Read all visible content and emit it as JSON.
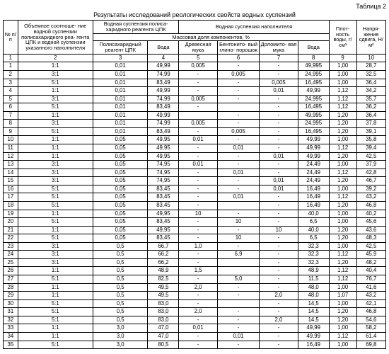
{
  "labels": {
    "table_no": "Таблица 2",
    "title": "Результаты исследований реологических свойств водных суспензий",
    "h_num": "№ п/п",
    "h_ratio": "Объемное соотноше- ние водной суспензии полисахаридного реа- гента ЦПК и водной суспензии указанного наполнителя",
    "h_cpk_susp": "Водная суспензия полиса- харидного реагента ЦПК",
    "h_filler_susp": "Водная суспензия наполнителя",
    "h_density": "Плот- ность воды, г/см³",
    "h_stress": "Напря- жение сдвига, Н/м²",
    "h_massfrac": "Массовая доля компонентов, %",
    "h_poly": "Полисахаридный реагент ЦПК",
    "h_water1": "Вода",
    "h_wood": "Древесная мука",
    "h_bent": "Бентонито- вый глино- порошок",
    "h_dolo": "Доломито- вая мука",
    "h_water2": "Вода"
  },
  "colnums": [
    "1",
    "2",
    "3",
    "4",
    "5",
    "6",
    "7",
    "8",
    "9",
    "10"
  ],
  "rows": [
    [
      "1",
      "1:1",
      "0,01",
      "49,99",
      "0,005",
      "-",
      "-",
      "49,995",
      "1,00",
      "28,7"
    ],
    [
      "2",
      "3:1",
      "0,01",
      "74,99",
      "-",
      "0,005",
      "-",
      "24,995",
      "1,00",
      "32,5"
    ],
    [
      "3",
      "5:1",
      "0,01",
      "83,49",
      "-",
      "-",
      "0,005",
      "16,495",
      "1,00",
      "36,4"
    ],
    [
      "4",
      "1:1",
      "0,01",
      "49,99",
      "-",
      "-",
      "0,01",
      "49,99",
      "1,12",
      "34,2"
    ],
    [
      "5",
      "3:1",
      "0,01",
      "74,99",
      "0,005",
      "-",
      "-",
      "24,995",
      "1,12",
      "35,7"
    ],
    [
      "6",
      "5:1",
      "0,01",
      "83,49",
      "-",
      "",
      "-",
      "16,495",
      "1,12",
      "36,2"
    ],
    [
      "7",
      "1:1",
      "0,01",
      "49,99",
      "",
      "-",
      "-",
      "49,995",
      "1,20",
      "36,4"
    ],
    [
      "8",
      "3:1",
      "0,01",
      "74,99",
      "0,005",
      "-",
      "-",
      "24,995",
      "1,20",
      "37,8"
    ],
    [
      "9",
      "5:1",
      "0,01",
      "83,49",
      "-",
      "0,005",
      "-",
      "16,495",
      "1,20",
      "39,1"
    ],
    [
      "10",
      "1:1",
      "0,05",
      "49,95",
      "0,01",
      "-",
      "-",
      "49,99",
      "1,00",
      "35,8"
    ],
    [
      "11",
      "1:1",
      "0,05",
      "49,95",
      "-",
      "0,01",
      "-",
      "49,99",
      "1,12",
      "39,4"
    ],
    [
      "12",
      "1:1",
      "0,05",
      "49,95",
      "-",
      "-",
      "0,01",
      "49,99",
      "1,20",
      "42,5"
    ],
    [
      "13",
      "3:1",
      "0,05",
      "74,95",
      "0,01",
      "-",
      "-",
      "24,49",
      "1,00",
      "37,9"
    ],
    [
      "14",
      "3:1",
      "0,05",
      "74,95",
      "-",
      "0,01",
      "-",
      "24,49",
      "1,12",
      "42,8"
    ],
    [
      "15",
      "3:1",
      "0,05",
      "74,95",
      "-",
      "-",
      "0,01",
      "24,49",
      "1,20",
      "46,7"
    ],
    [
      "16",
      "5:1",
      "0,05",
      "83,45",
      "-",
      "-",
      "0,01",
      "16,49",
      "1,00",
      "39,2"
    ],
    [
      "17",
      "5:1",
      "0,05",
      "83,45",
      "-",
      "0,01",
      "-",
      "16,49",
      "1,12",
      "43,2"
    ],
    [
      "18",
      "5:1",
      "0,05",
      "83,45",
      "-",
      "",
      "-",
      "16,49",
      "1,20",
      "46,8"
    ],
    [
      "19",
      "1:1",
      "0,05",
      "49,95",
      "10",
      "-",
      "-",
      "40,0",
      "1,00",
      "40,2"
    ],
    [
      "20",
      "5:1",
      "0,05",
      "83,45",
      "-",
      "10",
      "-",
      "6,5",
      "1,00",
      "45,6"
    ],
    [
      "21",
      "1:1",
      "0,05",
      "49,95",
      "-",
      "-",
      "10",
      "40,0",
      "1,20",
      "43,6"
    ],
    [
      "22",
      "5:1",
      "0,05",
      "83,45",
      "-",
      "10",
      "-",
      "6,5",
      "1,20",
      "48,3"
    ],
    [
      "23",
      "3:1",
      "0,5",
      "66,7",
      "1,0",
      "-",
      "-",
      "32,3",
      "1,00",
      "42,5"
    ],
    [
      "24",
      "3:1",
      "0,5",
      "66,2",
      "-",
      "6,9",
      "-",
      "32,3",
      "1,12",
      "45,9"
    ],
    [
      "25",
      "3:1",
      "0,5",
      "66,2",
      "-",
      "",
      "-",
      "32,3",
      "1,20",
      "48,2"
    ],
    [
      "26",
      "1:1",
      "0,5",
      "48,9",
      "1,5",
      "",
      "-",
      "48,9",
      "1,12",
      "40,4"
    ],
    [
      "27",
      "5:1",
      "0,5",
      "82,5",
      "-",
      "5,0",
      "-",
      "11,5",
      "1,12",
      "76,7"
    ],
    [
      "28",
      "1:1",
      "0,5",
      "49,5",
      "2,0",
      "-",
      "-",
      "48,0",
      "1,00",
      "41,6"
    ],
    [
      "29",
      "1:1",
      "0,5",
      "49,5",
      "-",
      "-",
      "2,0",
      "48,0",
      "1,07",
      "43,2"
    ],
    [
      "30",
      "5:1",
      "0,5",
      "83,0",
      "-",
      "",
      "-",
      "14,5",
      "1,00",
      "42,1"
    ],
    [
      "31",
      "5:1",
      "0,5",
      "83,0",
      "2,0",
      "-",
      "-",
      "14,5",
      "1,20",
      "46,8"
    ],
    [
      "32",
      "5:1",
      "0,5",
      "83,0",
      "-",
      "-",
      "2,0",
      "14,5",
      "1,20",
      "54,6"
    ],
    [
      "33",
      "1:1",
      "3,0",
      "47,0",
      "0,01",
      "-",
      "-",
      "49,99",
      "1,00",
      "58,2"
    ],
    [
      "34",
      "1:1",
      "3,0",
      "47,0",
      "-",
      "0,01",
      "-",
      "49,99",
      "1,12",
      "61,4"
    ],
    [
      "35",
      "5:1",
      "3,0",
      "80,5",
      "-",
      "-",
      "-",
      "16,49",
      "1,00",
      "69,8"
    ]
  ]
}
